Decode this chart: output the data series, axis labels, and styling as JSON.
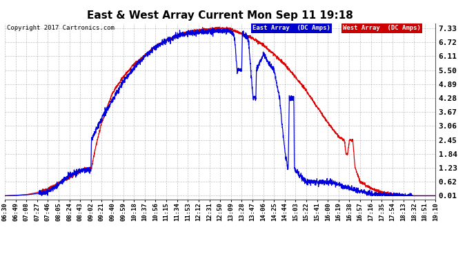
{
  "title": "East & West Array Current Mon Sep 11 19:18",
  "copyright": "Copyright 2017 Cartronics.com",
  "legend_east": "East Array  (DC Amps)",
  "legend_west": "West Array  (DC Amps)",
  "east_color": "#0000dd",
  "west_color": "#dd0000",
  "legend_east_bg": "#0000cc",
  "legend_west_bg": "#cc0000",
  "background_color": "#ffffff",
  "plot_bg_color": "#ffffff",
  "grid_color": "#999999",
  "ylim": [
    0.01,
    7.33
  ],
  "yticks": [
    0.01,
    0.62,
    1.23,
    1.84,
    2.45,
    3.06,
    3.67,
    4.28,
    4.89,
    5.5,
    6.11,
    6.72,
    7.33
  ],
  "xtick_labels": [
    "06:30",
    "06:49",
    "07:08",
    "07:27",
    "07:46",
    "08:05",
    "08:24",
    "08:43",
    "09:02",
    "09:21",
    "09:40",
    "09:59",
    "10:18",
    "10:37",
    "10:56",
    "11:15",
    "11:34",
    "11:53",
    "12:12",
    "12:31",
    "12:50",
    "13:09",
    "13:28",
    "13:47",
    "14:06",
    "14:25",
    "14:44",
    "15:03",
    "15:22",
    "15:41",
    "16:00",
    "16:19",
    "16:38",
    "16:57",
    "17:16",
    "17:35",
    "17:54",
    "18:13",
    "18:32",
    "18:51",
    "19:10"
  ],
  "east_keypoints": [
    [
      390,
      0.01
    ],
    [
      428,
      0.05
    ],
    [
      447,
      0.1
    ],
    [
      466,
      0.2
    ],
    [
      485,
      0.5
    ],
    [
      504,
      0.9
    ],
    [
      523,
      1.1
    ],
    [
      523,
      1.1
    ],
    [
      542,
      1.15
    ],
    [
      542,
      1.15
    ],
    [
      543,
      2.45
    ],
    [
      561,
      3.4
    ],
    [
      580,
      4.2
    ],
    [
      599,
      5.0
    ],
    [
      618,
      5.6
    ],
    [
      637,
      6.1
    ],
    [
      656,
      6.5
    ],
    [
      675,
      6.8
    ],
    [
      694,
      7.0
    ],
    [
      713,
      7.1
    ],
    [
      732,
      7.15
    ],
    [
      751,
      7.18
    ],
    [
      770,
      7.2
    ],
    [
      789,
      7.2
    ],
    [
      795,
      7.0
    ],
    [
      800,
      5.5
    ],
    [
      808,
      5.5
    ],
    [
      809,
      7.1
    ],
    [
      817,
      7.0
    ],
    [
      820,
      6.8
    ],
    [
      828,
      4.28
    ],
    [
      833,
      4.28
    ],
    [
      834,
      5.5
    ],
    [
      847,
      6.2
    ],
    [
      856,
      5.8
    ],
    [
      865,
      5.5
    ],
    [
      870,
      4.9
    ],
    [
      875,
      4.28
    ],
    [
      878,
      3.4
    ],
    [
      884,
      2.0
    ],
    [
      889,
      1.23
    ],
    [
      890,
      1.23
    ],
    [
      892,
      4.28
    ],
    [
      900,
      4.28
    ],
    [
      901,
      1.23
    ],
    [
      903,
      1.05
    ],
    [
      905,
      1.05
    ],
    [
      922,
      0.62
    ],
    [
      960,
      0.62
    ],
    [
      979,
      0.5
    ],
    [
      998,
      0.35
    ],
    [
      1017,
      0.2
    ],
    [
      1036,
      0.1
    ],
    [
      1055,
      0.05
    ],
    [
      1074,
      0.02
    ],
    [
      1090,
      0.01
    ]
  ],
  "west_keypoints": [
    [
      390,
      0.01
    ],
    [
      409,
      0.02
    ],
    [
      428,
      0.06
    ],
    [
      447,
      0.15
    ],
    [
      466,
      0.3
    ],
    [
      485,
      0.55
    ],
    [
      504,
      0.8
    ],
    [
      523,
      1.1
    ],
    [
      542,
      1.23
    ],
    [
      543,
      1.23
    ],
    [
      550,
      2.1
    ],
    [
      561,
      3.2
    ],
    [
      580,
      4.5
    ],
    [
      599,
      5.2
    ],
    [
      618,
      5.75
    ],
    [
      637,
      6.15
    ],
    [
      656,
      6.55
    ],
    [
      675,
      6.8
    ],
    [
      694,
      7.0
    ],
    [
      713,
      7.15
    ],
    [
      732,
      7.25
    ],
    [
      751,
      7.3
    ],
    [
      770,
      7.33
    ],
    [
      789,
      7.3
    ],
    [
      808,
      7.1
    ],
    [
      827,
      6.9
    ],
    [
      846,
      6.6
    ],
    [
      865,
      6.2
    ],
    [
      884,
      5.75
    ],
    [
      903,
      5.2
    ],
    [
      922,
      4.6
    ],
    [
      941,
      3.9
    ],
    [
      960,
      3.2
    ],
    [
      979,
      2.6
    ],
    [
      987,
      2.45
    ],
    [
      989,
      2.45
    ],
    [
      992,
      1.84
    ],
    [
      995,
      1.84
    ],
    [
      998,
      2.45
    ],
    [
      1004,
      2.45
    ],
    [
      1006,
      1.84
    ],
    [
      1008,
      1.23
    ],
    [
      1017,
      0.62
    ],
    [
      1036,
      0.35
    ],
    [
      1055,
      0.15
    ],
    [
      1074,
      0.07
    ],
    [
      1090,
      0.01
    ]
  ]
}
